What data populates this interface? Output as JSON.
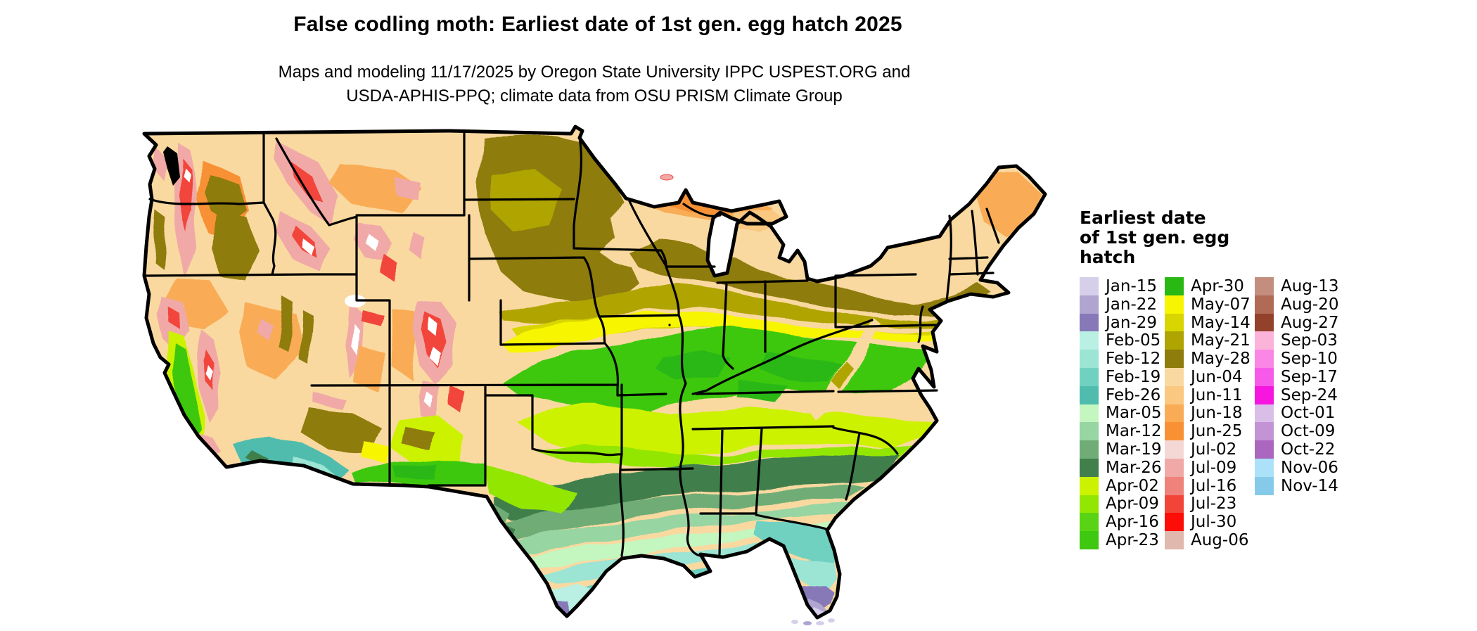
{
  "header": {
    "title": "False codling moth: Earliest date of 1st gen. egg hatch 2025",
    "subtitle_line1": "Maps and modeling 11/17/2025 by Oregon State University IPPC USPEST.ORG and",
    "subtitle_line2": "USDA-APHIS-PPQ; climate data from OSU PRISM Climate Group"
  },
  "legend": {
    "title_lines": [
      "Earliest date",
      "of 1st gen. egg",
      "hatch"
    ],
    "columns": [
      [
        {
          "label": "Jan-15",
          "color": "#d6cfe9"
        },
        {
          "label": "Jan-22",
          "color": "#b0a5d0"
        },
        {
          "label": "Jan-29",
          "color": "#8779b8"
        },
        {
          "label": "Feb-05",
          "color": "#b9f0e3"
        },
        {
          "label": "Feb-12",
          "color": "#9ce4d4"
        },
        {
          "label": "Feb-19",
          "color": "#70d1c1"
        },
        {
          "label": "Feb-26",
          "color": "#50bcae"
        },
        {
          "label": "Mar-05",
          "color": "#c4f6c0"
        },
        {
          "label": "Mar-12",
          "color": "#97d5a2"
        },
        {
          "label": "Mar-19",
          "color": "#70ad76"
        },
        {
          "label": "Mar-26",
          "color": "#417f4b"
        },
        {
          "label": "Apr-02",
          "color": "#ccf201"
        },
        {
          "label": "Apr-09",
          "color": "#93e601"
        },
        {
          "label": "Apr-16",
          "color": "#59d414"
        },
        {
          "label": "Apr-23",
          "color": "#3ec810"
        }
      ],
      [
        {
          "label": "Apr-30",
          "color": "#29b814"
        },
        {
          "label": "May-07",
          "color": "#f7f501"
        },
        {
          "label": "May-14",
          "color": "#d8d501"
        },
        {
          "label": "May-21",
          "color": "#b0a402"
        },
        {
          "label": "May-28",
          "color": "#8e7c0d"
        },
        {
          "label": "Jun-04",
          "color": "#f9d9a0"
        },
        {
          "label": "Jun-11",
          "color": "#fac880"
        },
        {
          "label": "Jun-18",
          "color": "#f9ac55"
        },
        {
          "label": "Jun-25",
          "color": "#f89134"
        },
        {
          "label": "Jul-02",
          "color": "#f3d8d6"
        },
        {
          "label": "Jul-09",
          "color": "#f0a9a6"
        },
        {
          "label": "Jul-16",
          "color": "#ef827b"
        },
        {
          "label": "Jul-23",
          "color": "#f2453a"
        },
        {
          "label": "Jul-30",
          "color": "#fd0d07"
        },
        {
          "label": "Aug-06",
          "color": "#e1b8ad"
        }
      ],
      [
        {
          "label": "Aug-13",
          "color": "#c38e7d"
        },
        {
          "label": "Aug-20",
          "color": "#b06a55"
        },
        {
          "label": "Aug-27",
          "color": "#92422b"
        },
        {
          "label": "Sep-03",
          "color": "#fcb3da"
        },
        {
          "label": "Sep-10",
          "color": "#fa86e5"
        },
        {
          "label": "Sep-17",
          "color": "#f75ae9"
        },
        {
          "label": "Sep-24",
          "color": "#f716e0"
        },
        {
          "label": "Oct-01",
          "color": "#d9bfe7"
        },
        {
          "label": "Oct-09",
          "color": "#c393d4"
        },
        {
          "label": "Oct-22",
          "color": "#ab66c0"
        },
        {
          "label": "Nov-06",
          "color": "#ace2f9"
        },
        {
          "label": "Nov-14",
          "color": "#85cbe9"
        }
      ]
    ]
  }
}
